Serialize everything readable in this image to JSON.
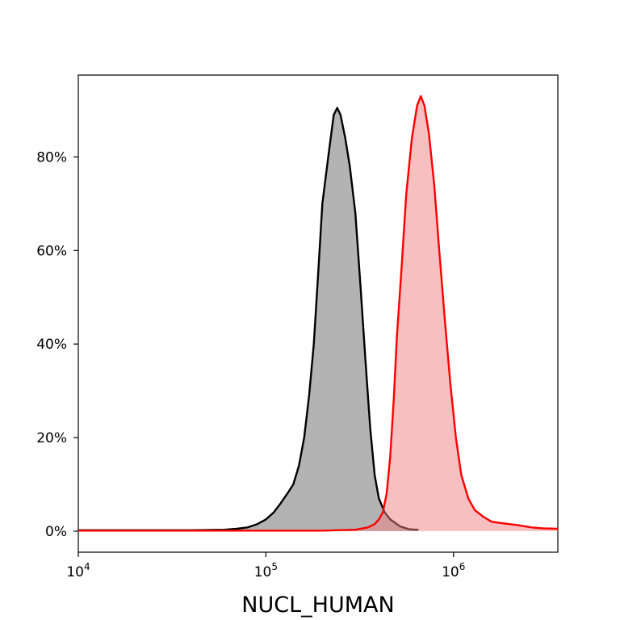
{
  "chart_data": {
    "type": "area",
    "title": "",
    "xlabel": "NUCL_HUMAN",
    "ylabel": "",
    "x_scale": "log",
    "xlim": [
      10000,
      3600000
    ],
    "ylim": [
      -0.045,
      0.975
    ],
    "x_ticks": [
      {
        "value": 10000,
        "base": "10",
        "exp": "4"
      },
      {
        "value": 100000,
        "base": "10",
        "exp": "5"
      },
      {
        "value": 1000000,
        "base": "10",
        "exp": "6"
      }
    ],
    "y_ticks": [
      {
        "value": 0.0,
        "label": "0%"
      },
      {
        "value": 0.2,
        "label": "20%"
      },
      {
        "value": 0.4,
        "label": "40%"
      },
      {
        "value": 0.6,
        "label": "60%"
      },
      {
        "value": 0.8,
        "label": "80%"
      }
    ],
    "grid": false,
    "legend": "none",
    "series": [
      {
        "line_color": "#000000",
        "fill_color": "#b3b3b3",
        "fill_opacity": 1,
        "points": [
          [
            10000,
            0.002
          ],
          [
            20000,
            0.002
          ],
          [
            40000,
            0.002
          ],
          [
            60000,
            0.003
          ],
          [
            70000,
            0.005
          ],
          [
            80000,
            0.008
          ],
          [
            90000,
            0.015
          ],
          [
            100000,
            0.025
          ],
          [
            110000,
            0.04
          ],
          [
            120000,
            0.06
          ],
          [
            130000,
            0.08
          ],
          [
            140000,
            0.1
          ],
          [
            150000,
            0.14
          ],
          [
            160000,
            0.2
          ],
          [
            170000,
            0.29
          ],
          [
            180000,
            0.4
          ],
          [
            190000,
            0.55
          ],
          [
            200000,
            0.7
          ],
          [
            215000,
            0.8
          ],
          [
            230000,
            0.89
          ],
          [
            240000,
            0.905
          ],
          [
            250000,
            0.89
          ],
          [
            265000,
            0.84
          ],
          [
            280000,
            0.78
          ],
          [
            300000,
            0.68
          ],
          [
            320000,
            0.52
          ],
          [
            340000,
            0.36
          ],
          [
            360000,
            0.22
          ],
          [
            380000,
            0.12
          ],
          [
            400000,
            0.07
          ],
          [
            430000,
            0.04
          ],
          [
            460000,
            0.025
          ],
          [
            520000,
            0.01
          ],
          [
            580000,
            0.004
          ],
          [
            650000,
            0.003
          ]
        ]
      },
      {
        "line_color": "#ff0000",
        "fill_color": "#f08080",
        "fill_opacity": 0.5,
        "points": [
          [
            10000,
            0.001
          ],
          [
            50000,
            0.001
          ],
          [
            100000,
            0.001
          ],
          [
            200000,
            0.001
          ],
          [
            300000,
            0.003
          ],
          [
            350000,
            0.008
          ],
          [
            380000,
            0.015
          ],
          [
            400000,
            0.025
          ],
          [
            420000,
            0.04
          ],
          [
            440000,
            0.08
          ],
          [
            460000,
            0.16
          ],
          [
            480000,
            0.28
          ],
          [
            500000,
            0.42
          ],
          [
            530000,
            0.57
          ],
          [
            560000,
            0.72
          ],
          [
            600000,
            0.84
          ],
          [
            640000,
            0.91
          ],
          [
            670000,
            0.93
          ],
          [
            700000,
            0.91
          ],
          [
            740000,
            0.85
          ],
          [
            790000,
            0.74
          ],
          [
            840000,
            0.6
          ],
          [
            900000,
            0.45
          ],
          [
            960000,
            0.32
          ],
          [
            1030000,
            0.2
          ],
          [
            1100000,
            0.12
          ],
          [
            1200000,
            0.07
          ],
          [
            1300000,
            0.045
          ],
          [
            1450000,
            0.03
          ],
          [
            1600000,
            0.02
          ],
          [
            1900000,
            0.016
          ],
          [
            2200000,
            0.013
          ],
          [
            2600000,
            0.008
          ],
          [
            3000000,
            0.006
          ],
          [
            3600000,
            0.005
          ]
        ]
      }
    ]
  }
}
